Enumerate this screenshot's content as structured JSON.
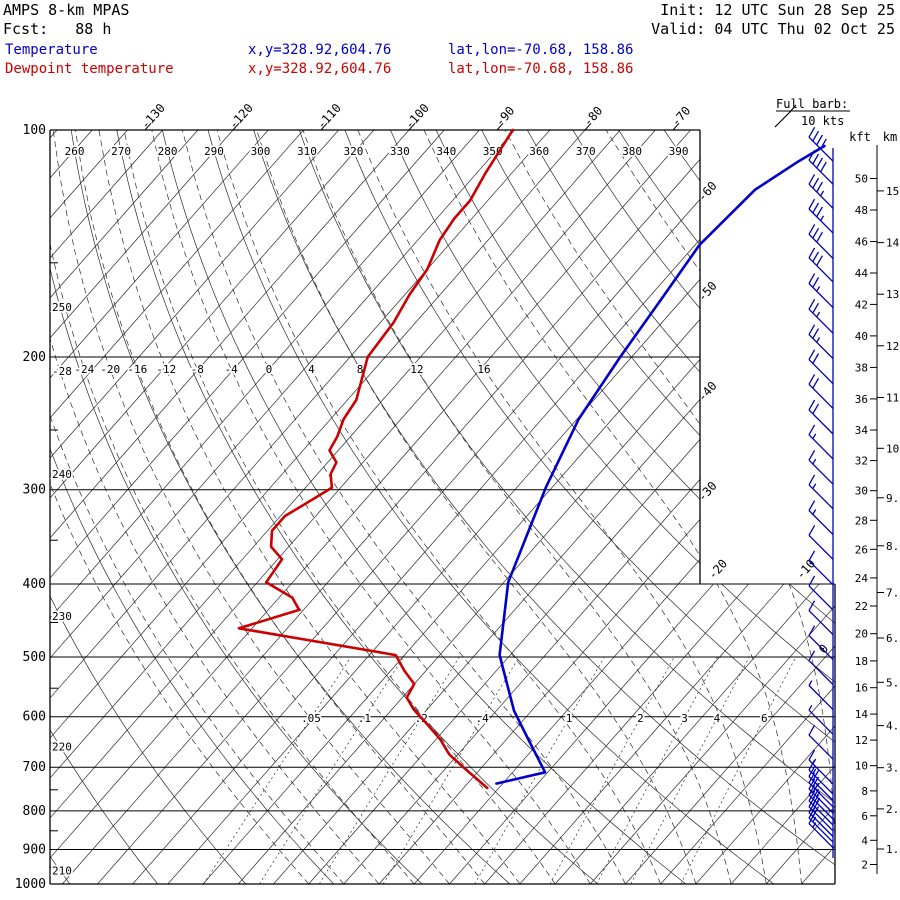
{
  "header": {
    "title": "AMPS 8-km MPAS",
    "fcst": "Fcst:   88 h",
    "init": "Init: 12 UTC Sun 28 Sep 25",
    "valid": "Valid: 04 UTC Thu 02 Oct 25"
  },
  "legend": {
    "rows": [
      {
        "label": "Temperature",
        "xy": "x,y=328.92,604.76",
        "latlon": "lat,lon=-70.68, 158.86"
      },
      {
        "label": "Dewpoint temperature",
        "xy": "x,y=328.92,604.76",
        "latlon": "lat,lon=-70.68, 158.86"
      }
    ]
  },
  "barb_legend": {
    "title": "Full barb:",
    "value": "10 kts"
  },
  "colors": {
    "temperature": "#0000cc",
    "dewpoint": "#cc0000",
    "wind": "#0000bb",
    "grid": "#2b2b2b",
    "text": "#000000"
  },
  "chart_data": {
    "type": "skewt-logp-sounding",
    "pressure_axis_hpa": [
      100,
      200,
      300,
      400,
      500,
      600,
      700,
      800,
      900,
      1000
    ],
    "pressure_minor_ticks": [
      150,
      250,
      350,
      450,
      550,
      650,
      750,
      850,
      950
    ],
    "isotherms_c": {
      "start": -144,
      "end": 24,
      "step": 4
    },
    "isotherm_top_labels_c": [
      -130,
      -120,
      -110,
      -100,
      -90,
      -80,
      -70
    ],
    "isotherm_right_labels_c": [
      -60,
      -50,
      -40,
      -30,
      -20,
      -10,
      0
    ],
    "dry_adiabats_k": {
      "start": 200,
      "end": 390,
      "step": 10
    },
    "dry_adiabat_top_labels_k": [
      260,
      270,
      280,
      290,
      300,
      310,
      320,
      330,
      340,
      350,
      360,
      370,
      380,
      390
    ],
    "dry_adiabat_left_labels_k": [
      250,
      240,
      230,
      220,
      210
    ],
    "moist_adiabats_c": {
      "start": -36,
      "end": 28,
      "step": 4
    },
    "moist_adiabat_row_labels_c": [
      -24,
      -20,
      -16,
      -12,
      -8,
      -4,
      0,
      4,
      8,
      12,
      16
    ],
    "moist_adiabat_left_label_c": -28,
    "mixing_ratio_lines": [
      {
        "v": 0.05,
        "label": ".05"
      },
      {
        "v": 0.1,
        "label": ".1"
      },
      {
        "v": 0.2,
        "label": ".2"
      },
      {
        "v": 0.4,
        "label": ".4"
      },
      {
        "v": 1,
        "label": "1"
      },
      {
        "v": 2,
        "label": "2"
      },
      {
        "v": 3,
        "label": "3"
      },
      {
        "v": 4,
        "label": "4"
      },
      {
        "v": 6,
        "label": "6"
      }
    ],
    "temperature_profile": {
      "name": "Temperature",
      "color": "#0000cc",
      "points_p_t": [
        [
          736,
          -24.7
        ],
        [
          711,
          -20.3
        ],
        [
          643,
          -25.5
        ],
        [
          589,
          -30
        ],
        [
          497,
          -37.2
        ],
        [
          398,
          -43.5
        ],
        [
          298,
          -48.7
        ],
        [
          242,
          -51.8
        ],
        [
          200,
          -53.3
        ],
        [
          168,
          -54.4
        ],
        [
          142,
          -55.5
        ],
        [
          120,
          -54.7
        ],
        [
          110,
          -52.6
        ],
        [
          105,
          -51.2
        ]
      ]
    },
    "dewpoint_profile": {
      "name": "Dewpoint temperature",
      "color": "#cc0000",
      "points_p_t": [
        [
          746,
          -25.3
        ],
        [
          701,
          -30
        ],
        [
          673,
          -33
        ],
        [
          643,
          -35.5
        ],
        [
          614,
          -38.5
        ],
        [
          587,
          -41.5
        ],
        [
          566,
          -43.5
        ],
        [
          543,
          -44
        ],
        [
          521,
          -46.5
        ],
        [
          497,
          -49
        ],
        [
          458,
          -69.5
        ],
        [
          433,
          -64.5
        ],
        [
          417,
          -66.5
        ],
        [
          398,
          -71
        ],
        [
          371,
          -71.5
        ],
        [
          357,
          -74
        ],
        [
          340,
          -75.5
        ],
        [
          325,
          -75.5
        ],
        [
          309,
          -74
        ],
        [
          298,
          -73
        ],
        [
          286,
          -74.5
        ],
        [
          276,
          -75
        ],
        [
          266,
          -77
        ],
        [
          255,
          -77.5
        ],
        [
          242,
          -78.5
        ],
        [
          228,
          -79
        ],
        [
          200,
          -82
        ],
        [
          180,
          -82.5
        ],
        [
          165,
          -83.5
        ],
        [
          153,
          -84
        ],
        [
          140,
          -85.5
        ],
        [
          131,
          -86
        ],
        [
          124,
          -86
        ],
        [
          114,
          -87
        ],
        [
          100,
          -88.2
        ]
      ]
    },
    "wind_barbs": {
      "full_barb_kts": 10,
      "levels": [
        [
          110,
          40
        ],
        [
          118,
          40
        ],
        [
          127,
          35
        ],
        [
          137,
          35
        ],
        [
          148,
          30
        ],
        [
          159,
          30
        ],
        [
          172,
          25
        ],
        [
          186,
          25
        ],
        [
          201,
          25
        ],
        [
          217,
          20
        ],
        [
          234,
          20
        ],
        [
          253,
          20
        ],
        [
          273,
          15
        ],
        [
          295,
          15
        ],
        [
          318,
          15
        ],
        [
          344,
          15
        ],
        [
          371,
          10
        ],
        [
          401,
          10
        ],
        [
          433,
          10
        ],
        [
          467,
          10
        ],
        [
          504,
          10
        ],
        [
          544,
          10
        ],
        [
          587,
          5
        ],
        [
          633,
          5
        ],
        [
          683,
          10
        ],
        [
          737,
          15
        ],
        [
          760,
          15
        ],
        [
          775,
          20
        ],
        [
          790,
          20
        ],
        [
          805,
          25
        ],
        [
          820,
          25
        ],
        [
          835,
          20
        ],
        [
          850,
          20
        ],
        [
          865,
          20
        ],
        [
          880,
          15
        ],
        [
          895,
          15
        ]
      ]
    },
    "altitude_scale": {
      "kft_label": "kft",
      "km_label": "km",
      "kft_ticks": [
        50,
        48,
        46,
        44,
        42,
        40,
        38,
        36,
        34,
        32,
        30,
        28,
        26,
        24,
        22,
        20,
        18,
        16,
        14,
        12,
        10,
        8,
        6,
        4,
        2
      ],
      "km_ticks": [
        "15.",
        "14.",
        "13.",
        "12.",
        "11.",
        "10.",
        "9.",
        "8.",
        "7.",
        "6.",
        "5.",
        "4.",
        "3.",
        "2.",
        "1."
      ]
    }
  }
}
